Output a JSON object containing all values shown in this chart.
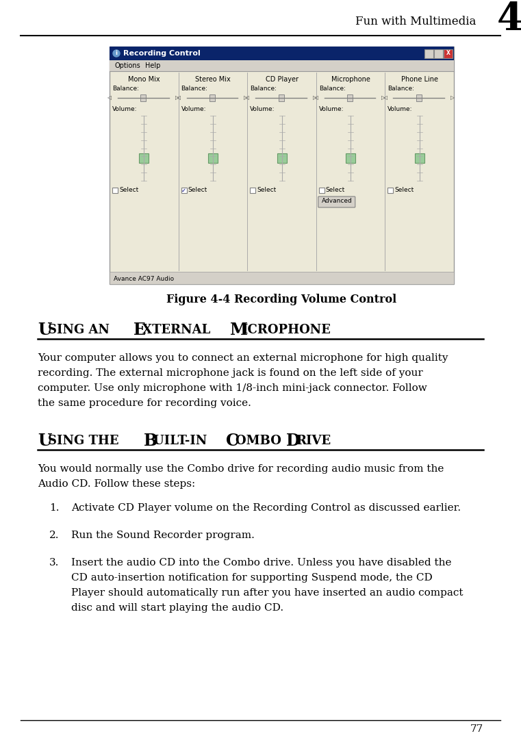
{
  "header_text": "Fun with Multimedia",
  "header_number": "4",
  "figure_caption": "Figure 4-4 Recording Volume Control",
  "section1_title_first": "U",
  "section1_title_rest": "SING AN ",
  "section1_title_E": "E",
  "section1_title_xternal": "XTERNAL ",
  "section1_title_M": "M",
  "section1_title_icrophone": "ICROPHONE",
  "section1_title_full": "Using an External Microphone",
  "section2_title_full": "Using the Built-in Combo Drive",
  "section1_body_lines": [
    "Your computer allows you to connect an external microphone for high quality",
    "recording. The external microphone jack is found on the left side of your",
    "computer. Use only microphone with 1/8-inch mini-jack connector. Follow",
    "the same procedure for recording voice."
  ],
  "section2_intro_lines": [
    "You would normally use the Combo drive for recording audio music from the",
    "Audio CD. Follow these steps:"
  ],
  "list_items": [
    [
      "Activate CD Player volume on the Recording Control as discussed earlier."
    ],
    [
      "Run the Sound Recorder program."
    ],
    [
      "Insert the audio CD into the Combo drive. Unless you have disabled the",
      "CD auto-insertion notification for supporting Suspend mode, the CD",
      "Player should automatically run after you have inserted an audio compact",
      "disc and will start playing the audio CD."
    ]
  ],
  "page_number": "77",
  "bg_color": "#ffffff",
  "text_color": "#000000",
  "window_title": "Recording Control",
  "window_columns": [
    "Mono Mix",
    "Stereo Mix",
    "CD Player",
    "Microphone",
    "Phone Line"
  ],
  "window_bg": "#ece9d8",
  "window_title_bg": "#0a246a",
  "window_border": "#808080",
  "window_footer": "Avance AC97 Audio"
}
